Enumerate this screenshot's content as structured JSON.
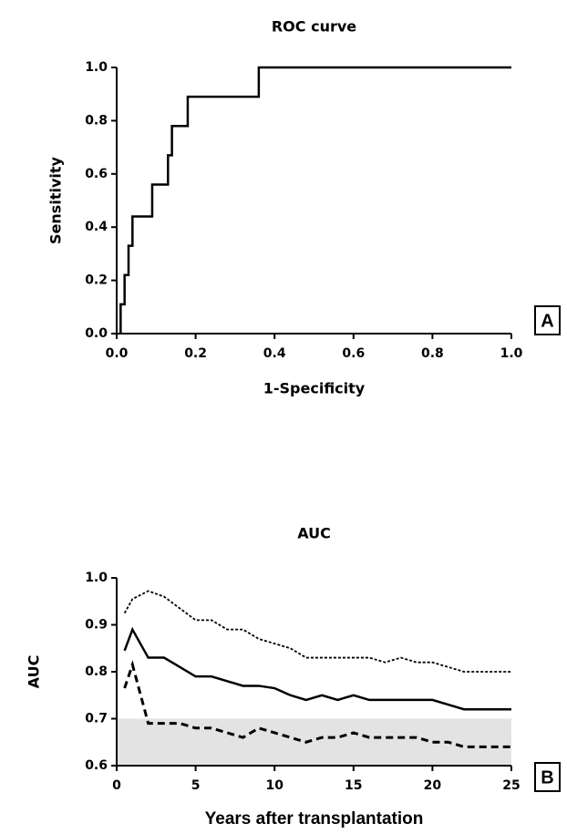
{
  "chart_data": [
    {
      "type": "line",
      "title": "ROC curve",
      "x_label": "1-Specificity",
      "y_label": "Sensitivity",
      "panel_label": "A",
      "xlim": [
        0,
        1
      ],
      "ylim": [
        0,
        1
      ],
      "xticks": [
        {
          "value": 0,
          "label": "0.0"
        },
        0.2,
        0.4,
        0.6,
        0.8,
        {
          "value": 1,
          "label": "1.0"
        }
      ],
      "yticks": [
        {
          "value": 0,
          "label": "0.0"
        },
        0.2,
        0.4,
        0.6,
        0.8,
        {
          "value": 1,
          "label": "1.0"
        }
      ],
      "series": [
        {
          "color": "#000000",
          "linestyle": "solid",
          "x": [
            0.01,
            0.01,
            0.02,
            0.02,
            0.03,
            0.03,
            0.04,
            0.04,
            0.09,
            0.09,
            0.13,
            0.13,
            0.14,
            0.14,
            0.18,
            0.18,
            0.36,
            0.36,
            1.0
          ],
          "values": [
            0,
            0.11,
            0.11,
            0.22,
            0.22,
            0.33,
            0.33,
            0.44,
            0.44,
            0.56,
            0.56,
            0.67,
            0.67,
            0.78,
            0.78,
            0.89,
            0.89,
            1.0,
            1.0
          ]
        }
      ]
    },
    {
      "type": "line",
      "title": "AUC",
      "x_label": "Years after transplantation",
      "y_label": "AUC",
      "panel_label": "B",
      "xlim": [
        0,
        25
      ],
      "ylim": [
        0.6,
        1
      ],
      "xticks": [
        0,
        5,
        10,
        15,
        20,
        25
      ],
      "yticks": [
        0.6,
        0.7,
        0.8,
        0.9,
        {
          "value": 1,
          "label": "1.0"
        }
      ],
      "shaded_band": [
        0.6,
        0.7
      ],
      "shade_color": "#e3e3e3",
      "x": [
        0.5,
        1,
        2,
        3,
        4,
        5,
        6,
        7,
        8,
        9,
        10,
        11,
        12,
        13,
        14,
        15,
        16,
        17,
        18,
        19,
        20,
        21,
        22,
        23,
        24,
        25
      ],
      "series": [
        {
          "color": "#000000",
          "linestyle": "dotted",
          "values": [
            0.925,
            0.955,
            0.972,
            0.96,
            0.935,
            0.91,
            0.91,
            0.89,
            0.89,
            0.87,
            0.86,
            0.85,
            0.83,
            0.83,
            0.83,
            0.83,
            0.83,
            0.82,
            0.83,
            0.82,
            0.82,
            0.81,
            0.8,
            0.8,
            0.8,
            0.8
          ]
        },
        {
          "color": "#000000",
          "linestyle": "solid",
          "values": [
            0.845,
            0.89,
            0.83,
            0.83,
            0.81,
            0.79,
            0.79,
            0.78,
            0.77,
            0.77,
            0.765,
            0.75,
            0.74,
            0.75,
            0.74,
            0.75,
            0.74,
            0.74,
            0.74,
            0.74,
            0.74,
            0.73,
            0.72,
            0.72,
            0.72,
            0.72
          ]
        },
        {
          "color": "#000000",
          "linestyle": "dashed",
          "values": [
            0.765,
            0.815,
            0.69,
            0.69,
            0.69,
            0.68,
            0.68,
            0.67,
            0.66,
            0.68,
            0.67,
            0.66,
            0.65,
            0.66,
            0.66,
            0.67,
            0.66,
            0.66,
            0.66,
            0.66,
            0.65,
            0.65,
            0.64,
            0.64,
            0.64,
            0.64
          ]
        }
      ]
    }
  ]
}
